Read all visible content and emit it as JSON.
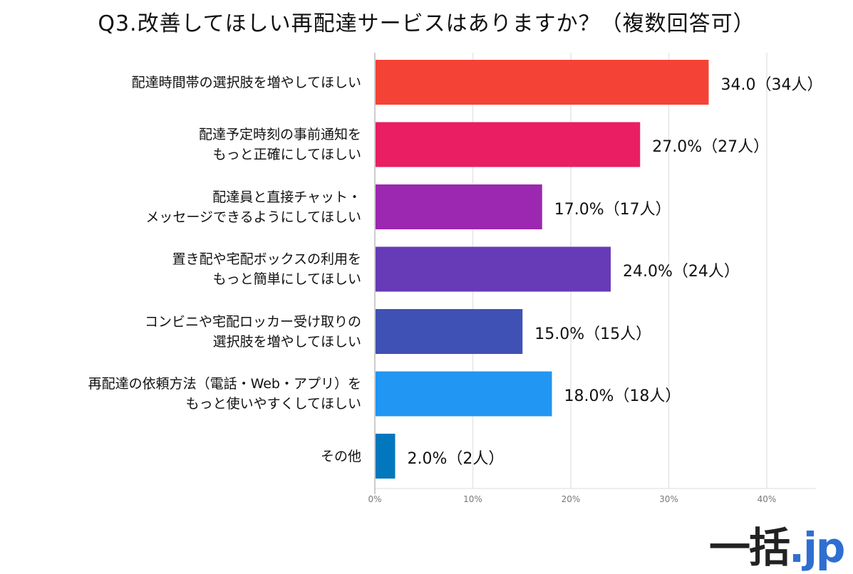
{
  "chart_data": {
    "type": "bar",
    "orientation": "horizontal",
    "title": "Q3.改善してほしい再配達サービスはありますか？（複数回答可）",
    "categories": [
      [
        "配達時間帯の選択肢を増やしてほしい"
      ],
      [
        "配達予定時刻の事前通知を",
        "もっと正確にしてほしい"
      ],
      [
        "配達員と直接チャット・",
        "メッセージできるようにしてほしい"
      ],
      [
        "置き配や宅配ボックスの利用を",
        "もっと簡単にしてほしい"
      ],
      [
        "コンビニや宅配ロッカー受け取りの",
        "選択肢を増やしてほしい"
      ],
      [
        "再配達の依頼方法（電話・Web・アプリ）を",
        "もっと使いやすくしてほしい"
      ],
      [
        "その他"
      ]
    ],
    "values": [
      34,
      27,
      17,
      24,
      15,
      18,
      2
    ],
    "value_labels": [
      "34.0（34人）",
      "27.0%（27人）",
      "17.0%（17人）",
      "24.0%（24人）",
      "15.0%（15人）",
      "18.0%（18人）",
      "2.0%（2人）"
    ],
    "colors": [
      "#f44336",
      "#e91e63",
      "#9c27b0",
      "#673ab7",
      "#3f51b5",
      "#2196f3",
      "#0277bd"
    ],
    "xlim": [
      0,
      45
    ],
    "xticks": [
      0,
      10,
      20,
      30,
      40
    ],
    "xtick_labels": [
      "0%",
      "10%",
      "20%",
      "30%",
      "40%"
    ],
    "grid": true
  },
  "logo": {
    "main": "一括",
    "suffix": ".jp"
  }
}
